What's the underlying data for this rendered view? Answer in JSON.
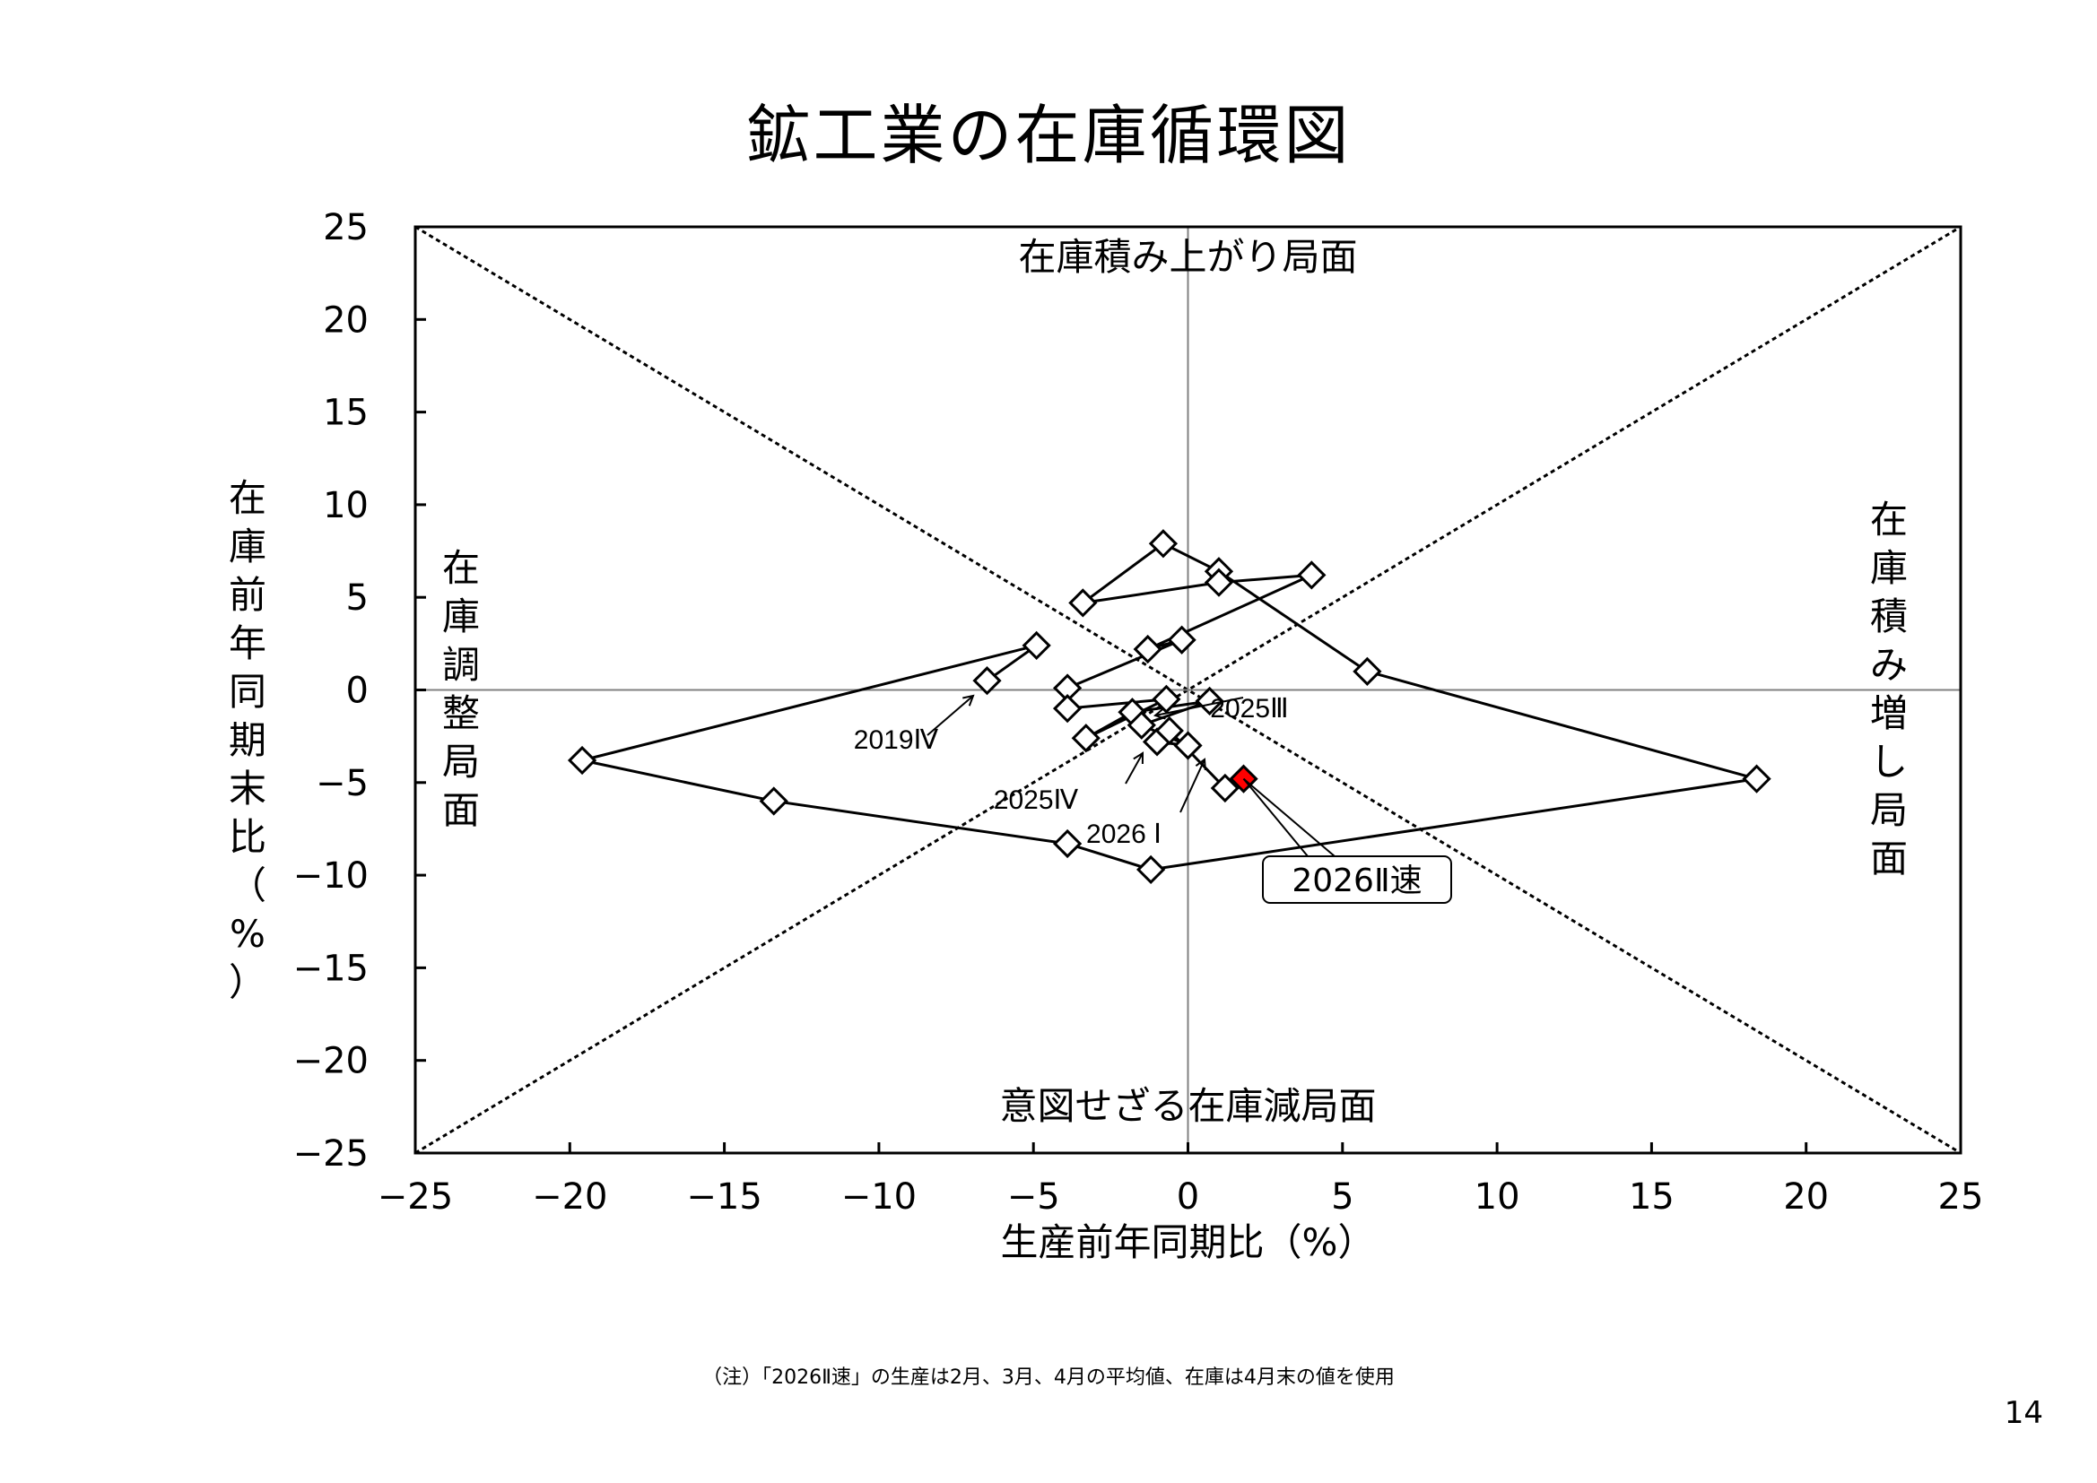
{
  "title": "鉱工業の在庫循環図",
  "note": "（注）「2026Ⅱ速」の生産は2月、3月、4月の平均値、在庫は4月末の値を使用",
  "page_number": "14",
  "colors": {
    "marker_fill": "#ffffff",
    "highlight_fill": "#ff0000",
    "line": "#000000",
    "grid": "#808080"
  },
  "chart_data": {
    "type": "scatter",
    "xlabel": "生産前年同期比（%）",
    "ylabel": "在庫前年同期末比（%）",
    "xlim": [
      -25,
      25
    ],
    "ylim": [
      -25,
      25
    ],
    "xticks": [
      -25,
      -20,
      -15,
      -10,
      -5,
      0,
      5,
      10,
      15,
      20,
      25
    ],
    "yticks": [
      -25,
      -20,
      -15,
      -10,
      -5,
      0,
      5,
      10,
      15,
      20,
      25
    ],
    "xtick_labels": [
      "−25",
      "−20",
      "−15",
      "−10",
      "−5",
      "0",
      "5",
      "10",
      "15",
      "20",
      "25"
    ],
    "ytick_labels": [
      "−25",
      "−20",
      "−15",
      "−10",
      "−5",
      "0",
      "5",
      "10",
      "15",
      "20",
      "25"
    ],
    "reference_lines": [
      {
        "from": [
          -25,
          25
        ],
        "to": [
          25,
          -25
        ]
      },
      {
        "from": [
          -25,
          -25
        ],
        "to": [
          25,
          25
        ]
      }
    ],
    "phases": {
      "top": "在庫積み上がり局面",
      "bottom": "意図せざる在庫減局面",
      "left": "在庫調整局面",
      "right": "在庫積み増し局面"
    },
    "series": [
      {
        "points": [
          {
            "x": -6.5,
            "y": 0.5
          },
          {
            "x": -4.9,
            "y": 2.4
          },
          {
            "x": -19.6,
            "y": -3.8
          },
          {
            "x": -13.4,
            "y": -6.0
          },
          {
            "x": -3.9,
            "y": -8.3
          },
          {
            "x": -1.2,
            "y": -9.7
          },
          {
            "x": 18.4,
            "y": -4.8
          },
          {
            "x": 5.8,
            "y": 1.0
          },
          {
            "x": 1.0,
            "y": 6.4
          },
          {
            "x": -0.8,
            "y": 7.9
          },
          {
            "x": -3.4,
            "y": 4.7
          },
          {
            "x": 1.0,
            "y": 5.8
          },
          {
            "x": 4.0,
            "y": 6.2
          },
          {
            "x": -1.3,
            "y": 2.2
          },
          {
            "x": -0.2,
            "y": 2.7
          },
          {
            "x": -3.9,
            "y": 0.1
          },
          {
            "x": -3.9,
            "y": -1.0
          },
          {
            "x": -0.7,
            "y": -0.5
          },
          {
            "x": -3.3,
            "y": -2.6
          },
          {
            "x": -1.8,
            "y": -1.2
          },
          {
            "x": 0.7,
            "y": -0.6
          },
          {
            "x": -1.5,
            "y": -1.9
          },
          {
            "x": 0.0,
            "y": -3.0
          },
          {
            "x": -1.0,
            "y": -2.8
          },
          {
            "x": -0.6,
            "y": -2.2
          },
          {
            "x": 1.2,
            "y": -5.3
          },
          {
            "x": 1.8,
            "y": -4.8
          }
        ]
      }
    ],
    "highlight_index": 26,
    "annotations": [
      {
        "text": "2019Ⅳ",
        "target": 0
      },
      {
        "text": "2025Ⅲ",
        "target": 20
      },
      {
        "text": "2025Ⅳ",
        "target": 23
      },
      {
        "text": "2026 Ⅰ",
        "target": 25
      },
      {
        "text": "2026Ⅱ速",
        "target": 26,
        "boxed": true
      }
    ]
  }
}
